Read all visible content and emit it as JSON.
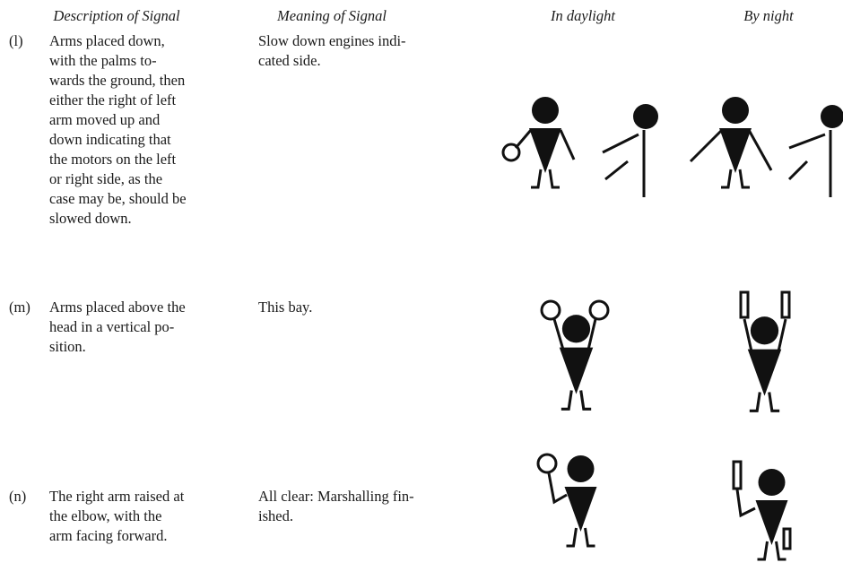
{
  "header": {
    "columns": [
      "Description of Signal",
      "Meaning of Signal",
      "In daylight",
      "By night"
    ]
  },
  "rows": [
    {
      "label": "(l)",
      "description": [
        "Arms placed down,",
        "with the palms to-",
        "wards the ground, then",
        "either the right of left",
        "arm moved up and",
        "down indicating that",
        "the motors on the left",
        "or right side, as the",
        "case may be, should be",
        "slowed down."
      ],
      "meaning": [
        "Slow down engines indi-",
        "cated side."
      ]
    },
    {
      "label": "(m)",
      "description": [
        "Arms placed above the",
        "head in a vertical po-",
        "sition."
      ],
      "meaning": [
        "This bay."
      ]
    },
    {
      "label": "(n)",
      "description": [
        "The right arm raised at",
        "the elbow, with the",
        "arm facing forward."
      ],
      "meaning": [
        "All clear: Marshalling fin-",
        "ished."
      ]
    }
  ]
}
